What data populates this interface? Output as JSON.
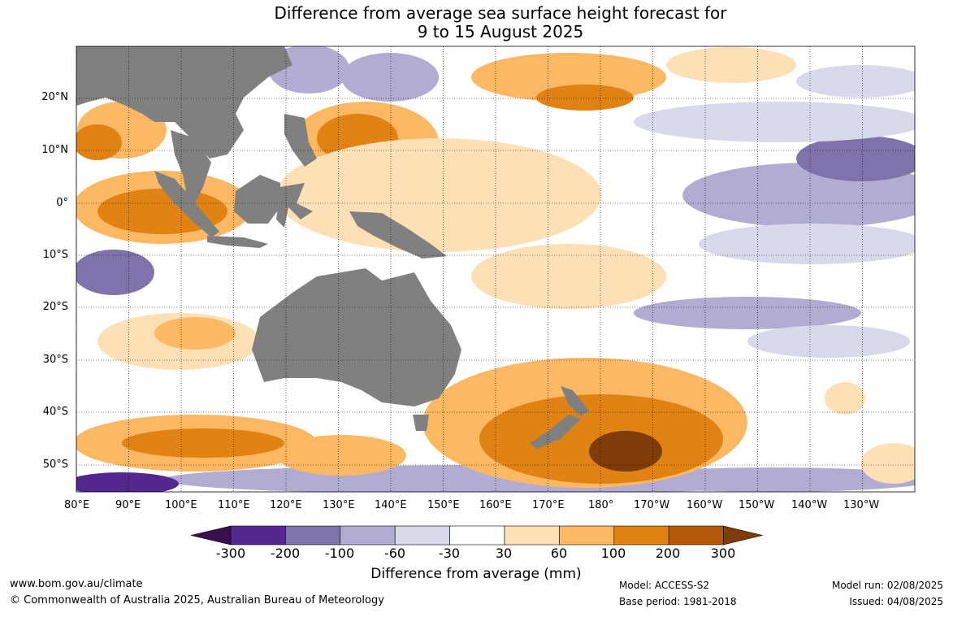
{
  "title_line1": "Difference from average sea surface height forecast for",
  "title_line2": "9 to 15 August 2025",
  "map": {
    "lon_labels": [
      "80°E",
      "90°E",
      "100°E",
      "110°E",
      "120°E",
      "130°E",
      "140°E",
      "150°E",
      "160°E",
      "170°E",
      "180°",
      "170°W",
      "160°W",
      "150°W",
      "140°W",
      "130°W"
    ],
    "lat_labels": [
      "20°N",
      "10°N",
      "0°",
      "10°S",
      "20°S",
      "30°S",
      "40°S",
      "50°S"
    ],
    "land_color": "#808080",
    "ocean_color": "#ffffff"
  },
  "colorbar": {
    "ticks": [
      "-300",
      "-200",
      "-100",
      "-60",
      "-30",
      "30",
      "60",
      "100",
      "200",
      "300"
    ],
    "colors": [
      "#3b0f4e",
      "#54278f",
      "#8073ac",
      "#b2abd2",
      "#d8daeb",
      "#ffffff",
      "#fee0b6",
      "#fdb863",
      "#e08214",
      "#b35806",
      "#7f3b08"
    ],
    "label": "Difference from average (mm)"
  },
  "footer": {
    "website": "www.bom.gov.au/climate",
    "copyright": "© Commonwealth of Australia 2025, Australian Bureau of Meteorology",
    "model": "Model: ACCESS-S2",
    "base_period": "Base period: 1981-2018",
    "model_run": "Model run: 02/08/2025",
    "issued": "Issued: 04/08/2025"
  }
}
